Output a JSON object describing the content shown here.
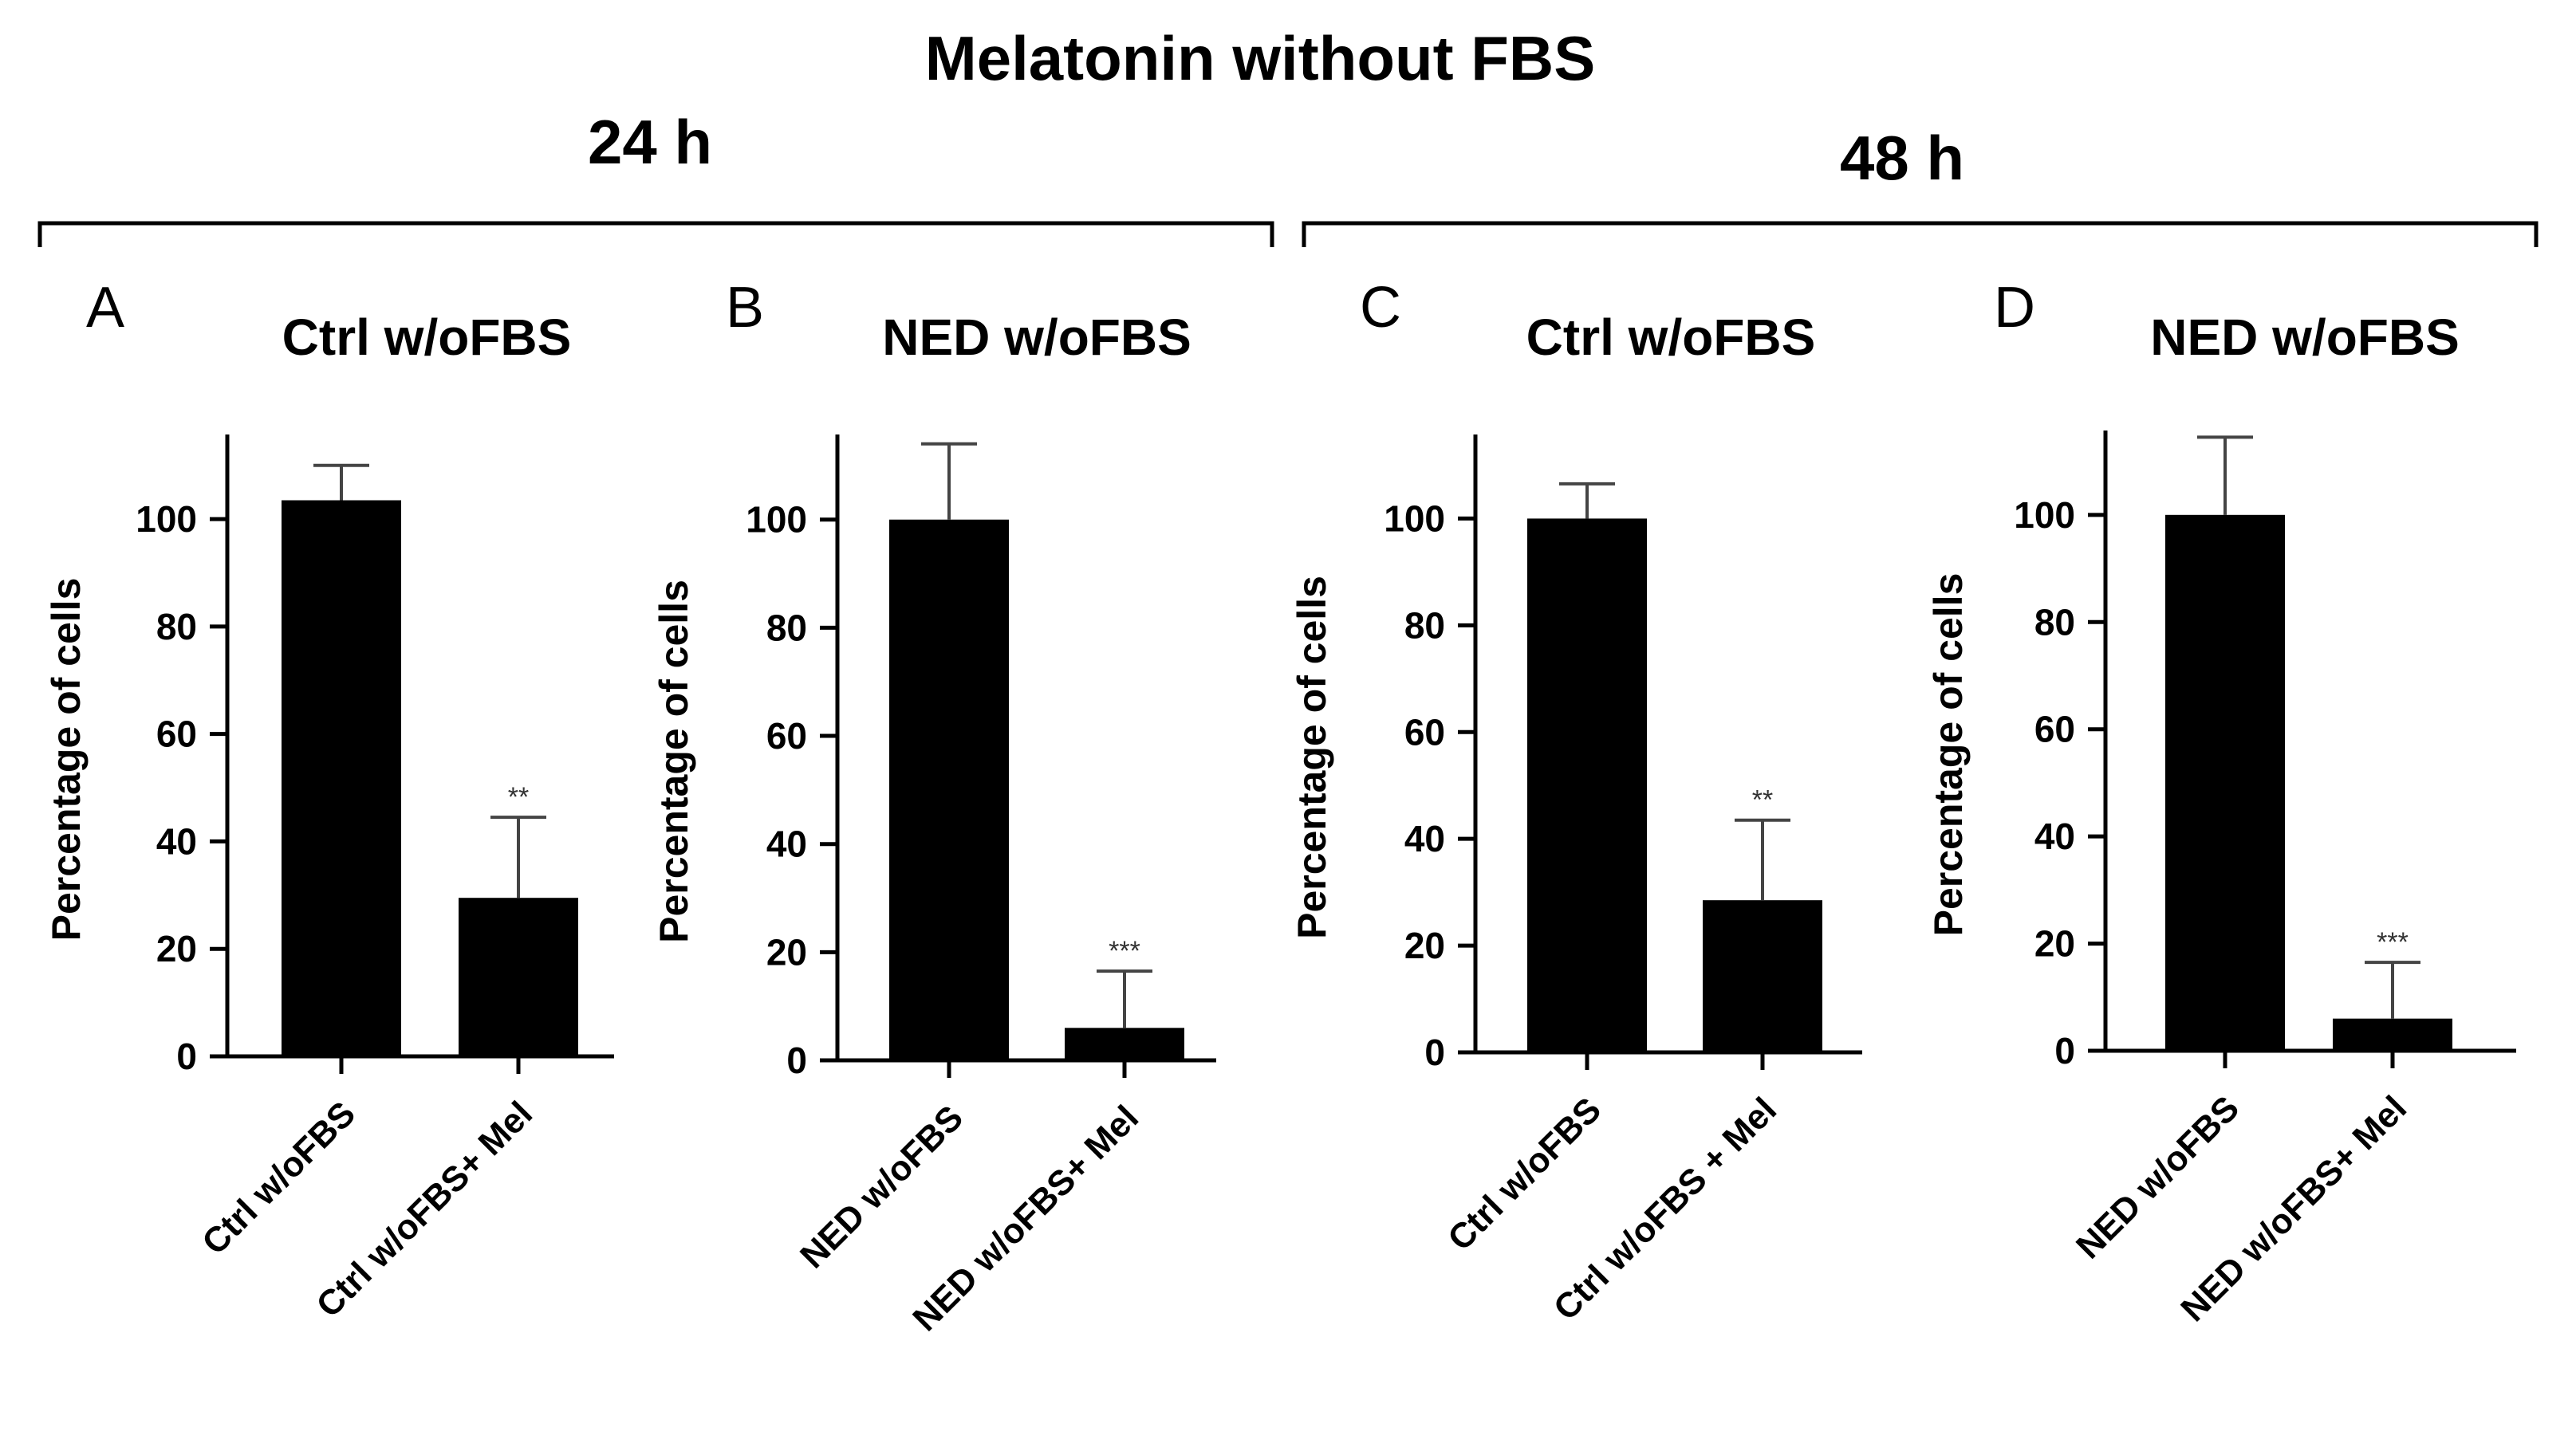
{
  "figure": {
    "title": "Melatonin without FBS",
    "periods": [
      {
        "label": "24 h",
        "panels": [
          0,
          1
        ]
      },
      {
        "label": "48 h",
        "panels": [
          2,
          3
        ]
      }
    ]
  },
  "colors": {
    "bar": "#000000",
    "axis": "#000000",
    "errorbar": "#444444",
    "background": "#ffffff"
  },
  "chart_data": [
    {
      "type": "bar",
      "panel": "A",
      "title": "Ctrl w/oFBS",
      "xlabel": "",
      "ylabel": "Percentage of cells",
      "ylim": [
        0,
        115
      ],
      "yticks": [
        0,
        20,
        40,
        60,
        80,
        100
      ],
      "categories": [
        "Ctrl w/oFBS",
        "Ctrl w/oFBS+ Mel"
      ],
      "values": [
        103.5,
        29.5
      ],
      "error": [
        6.5,
        15
      ],
      "significance": [
        "",
        "**"
      ]
    },
    {
      "type": "bar",
      "panel": "B",
      "title": "NED w/oFBS",
      "xlabel": "",
      "ylabel": "Percentage of cells",
      "ylim": [
        0,
        115
      ],
      "yticks": [
        0,
        20,
        40,
        60,
        80,
        100
      ],
      "categories": [
        "NED w/oFBS",
        "NED w/oFBS+ Mel"
      ],
      "values": [
        100,
        6
      ],
      "error": [
        14,
        10.5
      ],
      "significance": [
        "",
        "***"
      ]
    },
    {
      "type": "bar",
      "panel": "C",
      "title": "Ctrl w/oFBS",
      "xlabel": "",
      "ylabel": "Percentage of cells",
      "ylim": [
        0,
        115
      ],
      "yticks": [
        0,
        20,
        40,
        60,
        80,
        100
      ],
      "categories": [
        "Ctrl w/oFBS",
        "Ctrl w/oFBS + Mel"
      ],
      "values": [
        100,
        28.5
      ],
      "error": [
        6.5,
        15
      ],
      "significance": [
        "",
        "**"
      ]
    },
    {
      "type": "bar",
      "panel": "D",
      "title": "NED w/oFBS",
      "xlabel": "",
      "ylabel": "Percentage of cells",
      "ylim": [
        0,
        115
      ],
      "yticks": [
        0,
        20,
        40,
        60,
        80,
        100
      ],
      "categories": [
        "NED w/oFBS",
        "NED w/oFBS+ Mel"
      ],
      "values": [
        100,
        6
      ],
      "error": [
        14.5,
        10.5
      ],
      "significance": [
        "",
        "***"
      ]
    }
  ]
}
